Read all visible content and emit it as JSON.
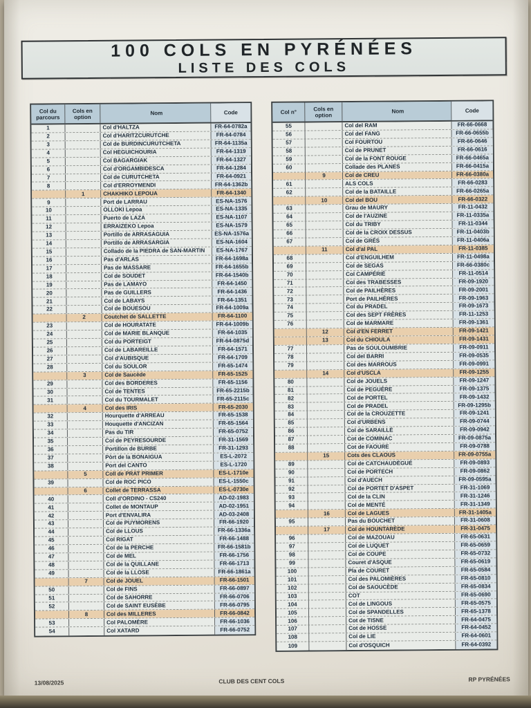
{
  "title": {
    "line1": "100 COLS EN PYRÉNÉES",
    "line2": "LISTE DES COLS"
  },
  "colors": {
    "header_fill": "#b9ccd7",
    "cell_fill": "#e9ece8",
    "code_fill": "#d9e2e7",
    "option_fill": "#e9cfad",
    "option_code_fill": "#e5c9a4"
  },
  "footer": {
    "date": "13/08/2025",
    "center": "CLUB DES CENT COLS",
    "right": "RP PYRÉNÉES"
  },
  "left_table": {
    "headers": [
      "Col du parcours",
      "Cols en option",
      "Nom",
      "Code"
    ],
    "rows": [
      {
        "n": "1",
        "o": "",
        "nom": "Col d'HALTZA",
        "code": "FR-64-0782a",
        "opt": false
      },
      {
        "n": "2",
        "o": "",
        "nom": "Col d'HARITZCURUTCHE",
        "code": "FR-64-0784",
        "opt": false
      },
      {
        "n": "3",
        "o": "",
        "nom": "Col de BURDINCURUTCHETA",
        "code": "FR-64-1135a",
        "opt": false
      },
      {
        "n": "4",
        "o": "",
        "nom": "Col HEGUICHOURIA",
        "code": "FR-64-1319",
        "opt": false
      },
      {
        "n": "5",
        "o": "",
        "nom": "Col BAGARGIAK",
        "code": "FR-64-1327",
        "opt": false
      },
      {
        "n": "6",
        "o": "",
        "nom": "Col d'ORGAMBIDESCA",
        "code": "FR-64-1284",
        "opt": false
      },
      {
        "n": "7",
        "o": "",
        "nom": "Col de CURUTCHETA",
        "code": "FR-64-0921",
        "opt": false
      },
      {
        "n": "8",
        "o": "",
        "nom": "Col d'ERROYMENDI",
        "code": "FR-64-1362b",
        "opt": false
      },
      {
        "n": "",
        "o": "1",
        "nom": "CHAKHIKO LEPOUA",
        "code": "FR-64-1340",
        "opt": true
      },
      {
        "n": "9",
        "o": "",
        "nom": "Port de LARRAU",
        "code": "ES-NA-1576",
        "opt": false
      },
      {
        "n": "10",
        "o": "",
        "nom": "OLLOKI Lepoa",
        "code": "ES-NA-1335",
        "opt": false
      },
      {
        "n": "11",
        "o": "",
        "nom": "Puerto de LAZA",
        "code": "ES-NA-1107",
        "opt": false
      },
      {
        "n": "12",
        "o": "",
        "nom": "ERRAIZEKO Lepoa",
        "code": "ES-NA-1579",
        "opt": false
      },
      {
        "n": "13",
        "o": "",
        "nom": "Portillo de ARRASAGUIA",
        "code": "ES-NA-1576a",
        "opt": false
      },
      {
        "n": "14",
        "o": "",
        "nom": "Portillo de ARRASARGIA",
        "code": "ES-NA-1604",
        "opt": false
      },
      {
        "n": "15",
        "o": "",
        "nom": "Collado de la PIEDRA de SAN-MARTIN",
        "code": "ES-NA-1767",
        "opt": false
      },
      {
        "n": "16",
        "o": "",
        "nom": "Pas d'ARLAS",
        "code": "FR-64-1698a",
        "opt": false
      },
      {
        "n": "17",
        "o": "",
        "nom": "Pas de MASSARE",
        "code": "FR-64-1655b",
        "opt": false
      },
      {
        "n": "18",
        "o": "",
        "nom": "Col de SOUDET",
        "code": "FR-64-1540b",
        "opt": false
      },
      {
        "n": "19",
        "o": "",
        "nom": "Pas de LAMAYO",
        "code": "FR-64-1450",
        "opt": false
      },
      {
        "n": "20",
        "o": "",
        "nom": "Pas de GUILLERS",
        "code": "FR-64-1436",
        "opt": false
      },
      {
        "n": "21",
        "o": "",
        "nom": "Col de LABAYS",
        "code": "FR-64-1351",
        "opt": false
      },
      {
        "n": "22",
        "o": "",
        "nom": "Col de BOUESOU",
        "code": "FR-64-1009a",
        "opt": false
      },
      {
        "n": "",
        "o": "2",
        "nom": "Coutchet de SALLETTE",
        "code": "FR-64-1100",
        "opt": true
      },
      {
        "n": "23",
        "o": "",
        "nom": "Col de HOURATATE",
        "code": "FR-64-1009b",
        "opt": false
      },
      {
        "n": "24",
        "o": "",
        "nom": "Col de MARIE BLANQUE",
        "code": "FR-64-1035",
        "opt": false
      },
      {
        "n": "25",
        "o": "",
        "nom": "Col du PORTEIGT",
        "code": "FR-64-0875d",
        "opt": false
      },
      {
        "n": "26",
        "o": "",
        "nom": "Col de LABAREILLE",
        "code": "FR-64-1571",
        "opt": false
      },
      {
        "n": "27",
        "o": "",
        "nom": "Col d'AUBISQUE",
        "code": "FR-64-1709",
        "opt": false
      },
      {
        "n": "28",
        "o": "",
        "nom": "Col du SOULOR",
        "code": "FR-65-1474",
        "opt": false
      },
      {
        "n": "",
        "o": "3",
        "nom": "Col de Saucède",
        "code": "FR-65-1525",
        "opt": true
      },
      {
        "n": "29",
        "o": "",
        "nom": "Col des BORDERES",
        "code": "FR-65-1156",
        "opt": false
      },
      {
        "n": "30",
        "o": "",
        "nom": "Col de TENTES",
        "code": "FR-65-2215b",
        "opt": false
      },
      {
        "n": "31",
        "o": "",
        "nom": "Col du TOURMALET",
        "code": "FR-65-2115c",
        "opt": false
      },
      {
        "n": "",
        "o": "4",
        "nom": "Col des IRIS",
        "code": "FR-65-2030",
        "opt": true
      },
      {
        "n": "32",
        "o": "",
        "nom": "Hourquette d'ARREAU",
        "code": "FR-65-1538",
        "opt": false
      },
      {
        "n": "33",
        "o": "",
        "nom": "Houquette d'ANCIZAN",
        "code": "FR-65-1564",
        "opt": false
      },
      {
        "n": "34",
        "o": "",
        "nom": "Pas du TIR",
        "code": "FR-65-0752",
        "opt": false
      },
      {
        "n": "35",
        "o": "",
        "nom": "Col de PEYRESOURDE",
        "code": "FR-31-1569",
        "opt": false
      },
      {
        "n": "36",
        "o": "",
        "nom": "Portillon de BURBE",
        "code": "FR-31-1293",
        "opt": false
      },
      {
        "n": "37",
        "o": "",
        "nom": "Pòrt de la BONAIGUA",
        "code": "ES-L-2072",
        "opt": false
      },
      {
        "n": "38",
        "o": "",
        "nom": "Port del CANTO",
        "code": "ES-L-1720",
        "opt": false
      },
      {
        "n": "",
        "o": "5",
        "nom": "Coll de PRAT PRIMER",
        "code": "ES-L-1710e",
        "opt": true
      },
      {
        "n": "39",
        "o": "",
        "nom": "Col de ROC PICO",
        "code": "ES-L-1550c",
        "opt": false
      },
      {
        "n": "",
        "o": "6",
        "nom": "Collet de TERRASSA",
        "code": "ES-L-0730e",
        "opt": true
      },
      {
        "n": "40",
        "o": "",
        "nom": "Coll d'ORDINO - CS240",
        "code": "AD-02-1983",
        "opt": false
      },
      {
        "n": "41",
        "o": "",
        "nom": "Collet de MONTAUP",
        "code": "AD-02-1951",
        "opt": false
      },
      {
        "n": "42",
        "o": "",
        "nom": "Port d'ENVALIRA",
        "code": "AD-03-2408",
        "opt": false
      },
      {
        "n": "43",
        "o": "",
        "nom": "Col de PUYMORENS",
        "code": "FR-66-1920",
        "opt": false
      },
      {
        "n": "44",
        "o": "",
        "nom": "Col de LLOUS",
        "code": "FR-66-1336a",
        "opt": false
      },
      {
        "n": "45",
        "o": "",
        "nom": "Col RIGAT",
        "code": "FR-66-1488",
        "opt": false
      },
      {
        "n": "46",
        "o": "",
        "nom": "Col de la PERCHE",
        "code": "FR-66-1581b",
        "opt": false
      },
      {
        "n": "47",
        "o": "",
        "nom": "Col de MEL",
        "code": "FR-66-1756",
        "opt": false
      },
      {
        "n": "48",
        "o": "",
        "nom": "Col de la QUILLANE",
        "code": "FR-66-1713",
        "opt": false
      },
      {
        "n": "49",
        "o": "",
        "nom": "Col de la LLOSE",
        "code": "FR-66-1861a",
        "opt": false
      },
      {
        "n": "",
        "o": "7",
        "nom": "Col de JOUEL",
        "code": "FR-66-1501",
        "opt": true
      },
      {
        "n": "50",
        "o": "",
        "nom": "Col de FINS",
        "code": "FR-66-0897",
        "opt": false
      },
      {
        "n": "51",
        "o": "",
        "nom": "Col de SAHORRE",
        "code": "FR-66-0706",
        "opt": false
      },
      {
        "n": "52",
        "o": "",
        "nom": "Col de SAINT EUSÈBE",
        "code": "FR-66-0795",
        "opt": false
      },
      {
        "n": "",
        "o": "8",
        "nom": "Col des MILLERES",
        "code": "FR-66-0842",
        "opt": true
      },
      {
        "n": "53",
        "o": "",
        "nom": "Col PALOMÈRE",
        "code": "FR-66-1036",
        "opt": false
      },
      {
        "n": "54",
        "o": "",
        "nom": "Col XATARD",
        "code": "FR-66-0752",
        "opt": false
      }
    ]
  },
  "right_table": {
    "headers": [
      "Col n°",
      "Cols en option",
      "Nom",
      "Code"
    ],
    "rows": [
      {
        "n": "55",
        "o": "",
        "nom": "Col del RAM",
        "code": "FR-66-0668",
        "opt": false
      },
      {
        "n": "56",
        "o": "",
        "nom": "Col del FANG",
        "code": "FR-66-0655b",
        "opt": false
      },
      {
        "n": "57",
        "o": "",
        "nom": "Col FOURTOU",
        "code": "FR-66-0646",
        "opt": false
      },
      {
        "n": "58",
        "o": "",
        "nom": "Col de PRUNET",
        "code": "FR-66-0616",
        "opt": false
      },
      {
        "n": "59",
        "o": "",
        "nom": "Col de la FONT ROUGE",
        "code": "FR-66-0465a",
        "opt": false
      },
      {
        "n": "60",
        "o": "",
        "nom": "Collade des PLANES",
        "code": "FR-66-0415a",
        "opt": false
      },
      {
        "n": "",
        "o": "9",
        "nom": "Col de CREU",
        "code": "FR-66-0380a",
        "opt": true
      },
      {
        "n": "61",
        "o": "",
        "nom": "ALS COLS",
        "code": "FR-66-0283",
        "opt": false
      },
      {
        "n": "62",
        "o": "",
        "nom": "Col de la BATAILLE",
        "code": "FR-66-0265a",
        "opt": false
      },
      {
        "n": "",
        "o": "10",
        "nom": "Col del BOU",
        "code": "FR-66-0322",
        "opt": true
      },
      {
        "n": "63",
        "o": "",
        "nom": "Grau de MAURY",
        "code": "FR-11-0432",
        "opt": false
      },
      {
        "n": "64",
        "o": "",
        "nom": "Col de l'AUZINE",
        "code": "FR-11-0335a",
        "opt": false
      },
      {
        "n": "65",
        "o": "",
        "nom": "Col du TRIBY",
        "code": "FR-11-0344",
        "opt": false
      },
      {
        "n": "66",
        "o": "",
        "nom": "Col de la CROIX DESSUS",
        "code": "FR-11-0403b",
        "opt": false
      },
      {
        "n": "67",
        "o": "",
        "nom": "Col de GRÈS",
        "code": "FR-11-0406a",
        "opt": false
      },
      {
        "n": "",
        "o": "11",
        "nom": "Col d'al PAL",
        "code": "FR-11-0385",
        "opt": true
      },
      {
        "n": "68",
        "o": "",
        "nom": "Col d'ENGUILHEM",
        "code": "FR-11-0498a",
        "opt": false
      },
      {
        "n": "69",
        "o": "",
        "nom": "Col de SEGAS",
        "code": "FR-66-0380c",
        "opt": false
      },
      {
        "n": "70",
        "o": "",
        "nom": "Col CAMPÉRIÉ",
        "code": "FR-11-0514",
        "opt": false
      },
      {
        "n": "71",
        "o": "",
        "nom": "Col des TRABESSES",
        "code": "FR-09-1920",
        "opt": false
      },
      {
        "n": "72",
        "o": "",
        "nom": "Col de PAILHÈRES",
        "code": "FR-09-2001",
        "opt": false
      },
      {
        "n": "73",
        "o": "",
        "nom": "Port de PAILHÈRES",
        "code": "FR-09-1963",
        "opt": false
      },
      {
        "n": "74",
        "o": "",
        "nom": "Col du PRADEL",
        "code": "FR-09-1673",
        "opt": false
      },
      {
        "n": "75",
        "o": "",
        "nom": "Col des SEPT FRÈRES",
        "code": "FR-11-1253",
        "opt": false
      },
      {
        "n": "76",
        "o": "",
        "nom": "Col de MARMARE",
        "code": "FR-09-1361",
        "opt": false
      },
      {
        "n": "",
        "o": "12",
        "nom": "Col d'EN FERRET",
        "code": "FR-09-1421",
        "opt": true
      },
      {
        "n": "",
        "o": "13",
        "nom": "Col du CHIOULA",
        "code": "FR-09-1431",
        "opt": true
      },
      {
        "n": "77",
        "o": "",
        "nom": "Pas de SOULOUMBRIE",
        "code": "FR-09-0911",
        "opt": false
      },
      {
        "n": "78",
        "o": "",
        "nom": "Col del BARRI",
        "code": "FR-09-0535",
        "opt": false
      },
      {
        "n": "79",
        "o": "",
        "nom": "Col des MARROUS",
        "code": "FR-09-0991",
        "opt": false
      },
      {
        "n": "",
        "o": "14",
        "nom": "Col d'USCLA",
        "code": "FR-09-1255",
        "opt": true
      },
      {
        "n": "80",
        "o": "",
        "nom": "Col de JOUELS",
        "code": "FR-09-1247",
        "opt": false
      },
      {
        "n": "81",
        "o": "",
        "nom": "Col de PEGUÈRE",
        "code": "FR-09-1375",
        "opt": false
      },
      {
        "n": "82",
        "o": "",
        "nom": "Col de PORTEL",
        "code": "FR-09-1432",
        "opt": false
      },
      {
        "n": "83",
        "o": "",
        "nom": "Col de PRADEL",
        "code": "FR-09-1295b",
        "opt": false
      },
      {
        "n": "84",
        "o": "",
        "nom": "Col de la CROUZETTE",
        "code": "FR-09-1241",
        "opt": false
      },
      {
        "n": "85",
        "o": "",
        "nom": "Col d'URBENS",
        "code": "FR-09-0744",
        "opt": false
      },
      {
        "n": "86",
        "o": "",
        "nom": "Col de SARAILLÉ",
        "code": "FR-09-0942",
        "opt": false
      },
      {
        "n": "87",
        "o": "",
        "nom": "Cot de COMINAC",
        "code": "FR-09-0875a",
        "opt": false
      },
      {
        "n": "88",
        "o": "",
        "nom": "Cot de FAOURE",
        "code": "FR-09-0788",
        "opt": false
      },
      {
        "n": "",
        "o": "15",
        "nom": "Cots des CLAOUS",
        "code": "FR-09-0755a",
        "opt": true
      },
      {
        "n": "89",
        "o": "",
        "nom": "Col de CATCHAUDÉGUÉ",
        "code": "FR-09-0893",
        "opt": false
      },
      {
        "n": "90",
        "o": "",
        "nom": "Col de PORTECH",
        "code": "FR-09-0862",
        "opt": false
      },
      {
        "n": "91",
        "o": "",
        "nom": "Col d'AUECH",
        "code": "FR-09-0595a",
        "opt": false
      },
      {
        "n": "92",
        "o": "",
        "nom": "Col de PORTET D'ASPET",
        "code": "FR-31-1069",
        "opt": false
      },
      {
        "n": "93",
        "o": "",
        "nom": "Col de la CLIN",
        "code": "FR-31-1246",
        "opt": false
      },
      {
        "n": "94",
        "o": "",
        "nom": "Col de MENTÉ",
        "code": "FR-31-1349",
        "opt": false
      },
      {
        "n": "",
        "o": "16",
        "nom": "Col de LAGUES",
        "code": "FR-31-1405a",
        "opt": true
      },
      {
        "n": "95",
        "o": "",
        "nom": "Pas du BOUCHET",
        "code": "FR-31-0608",
        "opt": false
      },
      {
        "n": "",
        "o": "17",
        "nom": "Col de HOUNTARÈDE",
        "code": "FR-31-0475",
        "opt": true
      },
      {
        "n": "96",
        "o": "",
        "nom": "Col de MAZOUAU",
        "code": "FR-65-0631",
        "opt": false
      },
      {
        "n": "97",
        "o": "",
        "nom": "Col de LUQUET",
        "code": "FR-65-0659",
        "opt": false
      },
      {
        "n": "98",
        "o": "",
        "nom": "Col de COUPE",
        "code": "FR-65-0732",
        "opt": false
      },
      {
        "n": "99",
        "o": "",
        "nom": "Couret d'ASQUE",
        "code": "FR-65-0619",
        "opt": false
      },
      {
        "n": "100",
        "o": "",
        "nom": "Pla de COURET",
        "code": "FR-65-0584",
        "opt": false
      },
      {
        "n": "101",
        "o": "",
        "nom": "Col des PALOMIÈRES",
        "code": "FR-65-0810",
        "opt": false
      },
      {
        "n": "102",
        "o": "",
        "nom": "Col de SAOUCÈDE",
        "code": "FR-65-0834",
        "opt": false
      },
      {
        "n": "103",
        "o": "",
        "nom": "COT",
        "code": "FR-65-0690",
        "opt": false
      },
      {
        "n": "104",
        "o": "",
        "nom": "Col de LINGOUS",
        "code": "FR-65-0575",
        "opt": false
      },
      {
        "n": "105",
        "o": "",
        "nom": "Col de SPANDELLES",
        "code": "FR-65-1378",
        "opt": false
      },
      {
        "n": "106",
        "o": "",
        "nom": "Cot de TISNE",
        "code": "FR-64-0475",
        "opt": false
      },
      {
        "n": "107",
        "o": "",
        "nom": "Cot de HOSSE",
        "code": "FR-64-0452",
        "opt": false
      },
      {
        "n": "108",
        "o": "",
        "nom": "Col de LIE",
        "code": "FR-64-0601",
        "opt": false
      },
      {
        "n": "109",
        "o": "",
        "nom": "Col d'OSQUICH",
        "code": "FR-64-0392",
        "opt": false
      }
    ]
  }
}
